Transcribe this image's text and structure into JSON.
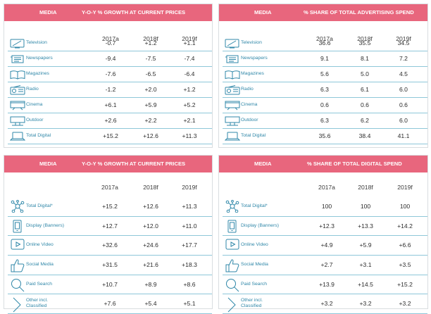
{
  "panels": [
    {
      "media_label": "MEDIA",
      "metric_title": "Y-O-Y % GROWTH AT CURRENT PRICES",
      "columns": [
        "2017a",
        "2018f",
        "2019f"
      ],
      "rows": [
        {
          "icon": "television-icon",
          "label": "Television",
          "values": [
            "-0.7",
            "+1.2",
            "+1.1"
          ]
        },
        {
          "icon": "newspaper-icon",
          "label": "Newspapers",
          "values": [
            "-9.4",
            "-7.5",
            "-7.4"
          ]
        },
        {
          "icon": "magazine-icon",
          "label": "Magazines",
          "values": [
            "-7.6",
            "-6.5",
            "-6.4"
          ]
        },
        {
          "icon": "radio-icon",
          "label": "Radio",
          "values": [
            "-1.2",
            "+2.0",
            "+1.2"
          ]
        },
        {
          "icon": "cinema-icon",
          "label": "Cinema",
          "values": [
            "+6.1",
            "+5.9",
            "+5.2"
          ]
        },
        {
          "icon": "billboard-icon",
          "label": "Outdoor",
          "values": [
            "+2.6",
            "+2.2",
            "+2.1"
          ]
        },
        {
          "icon": "laptop-icon",
          "label": "Total Digital",
          "values": [
            "+15.2",
            "+12.6",
            "+11.3"
          ]
        }
      ]
    },
    {
      "media_label": "MEDIA",
      "metric_title": "% SHARE OF TOTAL ADVERTISING SPEND",
      "columns": [
        "2017a",
        "2018f",
        "2019f"
      ],
      "rows": [
        {
          "icon": "television-icon",
          "label": "Television",
          "values": [
            "36.6",
            "35.5",
            "34.5"
          ]
        },
        {
          "icon": "newspaper-icon",
          "label": "Newspapers",
          "values": [
            "9.1",
            "8.1",
            "7.2"
          ]
        },
        {
          "icon": "magazine-icon",
          "label": "Magazines",
          "values": [
            "5.6",
            "5.0",
            "4.5"
          ]
        },
        {
          "icon": "radio-icon",
          "label": "Radio",
          "values": [
            "6.3",
            "6.1",
            "6.0"
          ]
        },
        {
          "icon": "cinema-icon",
          "label": "Cinema",
          "values": [
            "0.6",
            "0.6",
            "0.6"
          ]
        },
        {
          "icon": "billboard-icon",
          "label": "Outdoor",
          "values": [
            "6.3",
            "6.2",
            "6.0"
          ]
        },
        {
          "icon": "laptop-icon",
          "label": "Total Digital",
          "values": [
            "35.6",
            "38.4",
            "41.1"
          ]
        }
      ]
    },
    {
      "media_label": "MEDIA",
      "metric_title": "Y-O-Y % GROWTH AT CURRENT PRICES",
      "columns": [
        "2017a",
        "2018f",
        "2019f"
      ],
      "rows": [
        {
          "icon": "network-icon",
          "label": "Total Digital*",
          "values": [
            "+15.2",
            "+12.6",
            "+11.3"
          ]
        },
        {
          "icon": "banner-icon",
          "label": "Display (Banners)",
          "values": [
            "+12.7",
            "+12.0",
            "+11.0"
          ]
        },
        {
          "icon": "play-icon",
          "label": "Online Video",
          "values": [
            "+32.6",
            "+24.6",
            "+17.7"
          ]
        },
        {
          "icon": "thumbs-up-icon",
          "label": "Social Media",
          "values": [
            "+31.5",
            "+21.6",
            "+18.3"
          ]
        },
        {
          "icon": "magnifier-icon",
          "label": "Paid Search",
          "values": [
            "+10.7",
            "+8.9",
            "+8.6"
          ]
        },
        {
          "icon": "chevron-right-icon",
          "label": "Other incl. Classified",
          "values": [
            "+7.6",
            "+5.4",
            "+5.1"
          ]
        }
      ]
    },
    {
      "media_label": "MEDIA",
      "metric_title": "% SHARE OF TOTAL DIGITAL SPEND",
      "columns": [
        "2017a",
        "2018f",
        "2019f"
      ],
      "rows": [
        {
          "icon": "network-icon",
          "label": "Total Digital*",
          "values": [
            "100",
            "100",
            "100"
          ]
        },
        {
          "icon": "banner-icon",
          "label": "Display (Banners)",
          "values": [
            "+12.3",
            "+13.3",
            "+14.2"
          ]
        },
        {
          "icon": "play-icon",
          "label": "Online Video",
          "values": [
            "+4.9",
            "+5.9",
            "+6.6"
          ]
        },
        {
          "icon": "thumbs-up-icon",
          "label": "Social Media",
          "values": [
            "+2.7",
            "+3.1",
            "+3.5"
          ]
        },
        {
          "icon": "magnifier-icon",
          "label": "Paid Search",
          "values": [
            "+13.9",
            "+14.5",
            "+15.2"
          ]
        },
        {
          "icon": "chevron-right-icon",
          "label": "Other incl. Classified",
          "values": [
            "+3.2",
            "+3.2",
            "+3.2"
          ]
        }
      ]
    }
  ]
}
